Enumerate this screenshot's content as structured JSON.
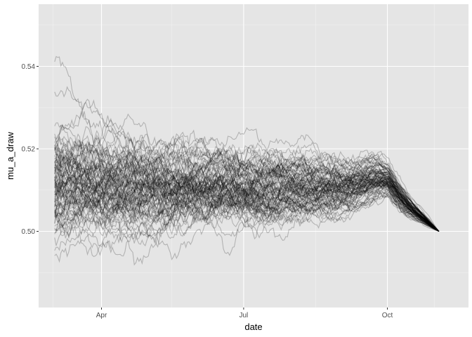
{
  "chart_data": {
    "type": "line",
    "title": "",
    "xlabel": "date",
    "ylabel": "mu_a_draw",
    "x_axis": {
      "scale": "date",
      "start": "2020-03-02",
      "end": "2020-11-03",
      "ticks": [
        {
          "label": "Apr",
          "date": "2020-04-01"
        },
        {
          "label": "Jul",
          "date": "2020-07-01"
        },
        {
          "label": "Oct",
          "date": "2020-10-01"
        }
      ]
    },
    "y_axis": {
      "ylim": [
        0.486,
        0.552
      ],
      "ticks": [
        {
          "label": "0.50",
          "value": 0.5
        },
        {
          "label": "0.52",
          "value": 0.52
        },
        {
          "label": "0.54",
          "value": 0.54
        }
      ]
    },
    "grid": true,
    "background": "#e5e5e5",
    "line_color": "#000000",
    "line_opacity": 0.22,
    "n_series": 100,
    "summary": {
      "start_range": [
        0.492,
        0.551
      ],
      "mid_band": [
        0.503,
        0.519
      ],
      "october_peak_band": [
        0.506,
        0.516
      ],
      "end_value": 0.5,
      "end_date": "2020-11-03"
    }
  }
}
